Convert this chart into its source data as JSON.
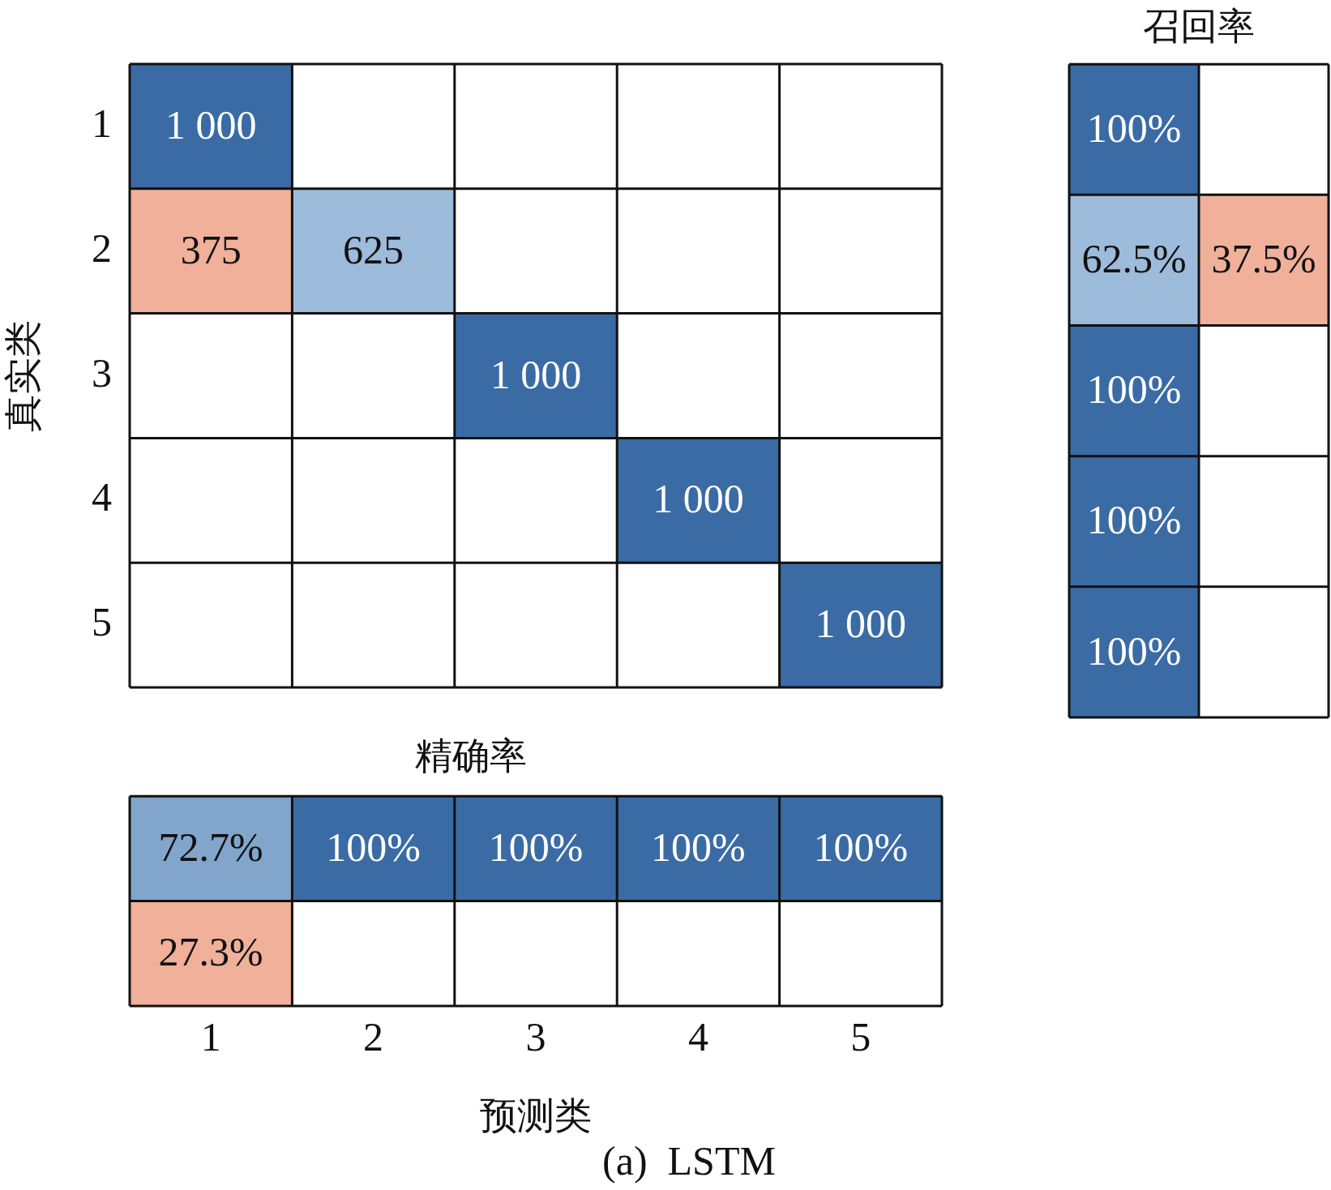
{
  "chart_data": [
    {
      "type": "heatmap",
      "ylabel": "真实类",
      "categories": [
        "1",
        "2",
        "3",
        "4",
        "5"
      ],
      "y_categories": [
        "1",
        "2",
        "3",
        "4",
        "5"
      ],
      "tick_labels": "y",
      "cells": [
        [
          1000,
          null,
          null,
          null,
          null
        ],
        [
          375,
          625,
          null,
          null,
          null
        ],
        [
          null,
          null,
          1000,
          null,
          null
        ],
        [
          null,
          null,
          null,
          1000,
          null
        ],
        [
          null,
          null,
          null,
          null,
          1000
        ]
      ],
      "cell_labels": [
        [
          "1 000",
          null,
          null,
          null,
          null
        ],
        [
          "375",
          "625",
          null,
          null,
          null
        ],
        [
          null,
          null,
          "1 000",
          null,
          null
        ],
        [
          null,
          null,
          null,
          "1 000",
          null
        ],
        [
          null,
          null,
          null,
          null,
          "1 000"
        ]
      ]
    },
    {
      "type": "heatmap",
      "title": "召回率",
      "categories": [
        null,
        null
      ],
      "y_categories": [
        null,
        null,
        null,
        null,
        null
      ],
      "tick_labels": false,
      "cells": [
        [
          100,
          null
        ],
        [
          62.5,
          37.5
        ],
        [
          100,
          null
        ],
        [
          100,
          null
        ],
        [
          100,
          null
        ]
      ],
      "cell_labels": [
        [
          "100%",
          null
        ],
        [
          "62.5%",
          "37.5%"
        ],
        [
          "100%",
          null
        ],
        [
          "100%",
          null
        ],
        [
          "100%",
          null
        ]
      ]
    },
    {
      "type": "heatmap",
      "title": "精确率",
      "xlabel": "预测类",
      "categories": [
        "1",
        "2",
        "3",
        "4",
        "5"
      ],
      "y_categories": [
        null,
        null
      ],
      "tick_labels": "x",
      "cells": [
        [
          72.7,
          100,
          100,
          100,
          100
        ],
        [
          27.3,
          null,
          null,
          null,
          null
        ]
      ],
      "cell_labels": [
        [
          "72.7%",
          "100%",
          "100%",
          "100%",
          "100%"
        ],
        [
          "27.3%",
          null,
          null,
          null,
          null
        ]
      ],
      "annotations": [
        "(a)  LSTM"
      ]
    }
  ]
}
